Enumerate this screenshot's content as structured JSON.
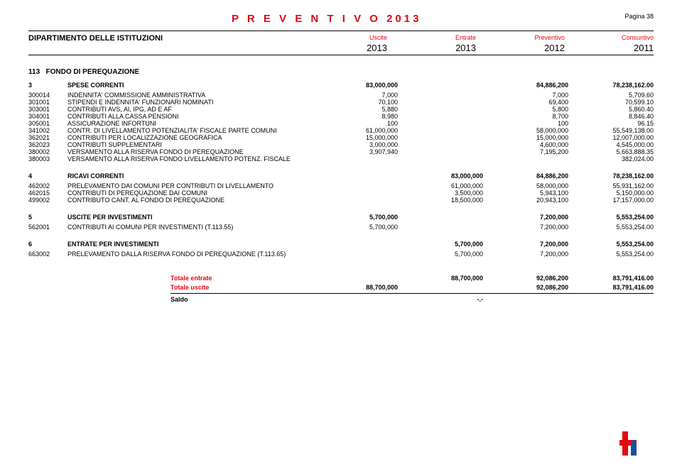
{
  "header": {
    "title": "P R E V E N T I V O  2013",
    "page_label": "Pagina 38"
  },
  "department": {
    "name": "DIPARTIMENTO DELLE ISTITUZIONI",
    "columns": [
      {
        "label": "Uscite",
        "year": "2013"
      },
      {
        "label": "Entrate",
        "year": "2013"
      },
      {
        "label": "Preventivo",
        "year": "2012"
      },
      {
        "label": "Consuntivo",
        "year": "2011"
      }
    ]
  },
  "fondo": {
    "code": "113",
    "title": "FONDO DI PEREQUAZIONE"
  },
  "groups": [
    {
      "code": "3",
      "label": "SPESE CORRENTI",
      "values": [
        "83,000,000",
        "",
        "84,886,200",
        "78,238,162.00"
      ],
      "lines": [
        {
          "code": "300014",
          "label": "INDENNITA' COMMISSIONE AMMINISTRATIVA",
          "values": [
            "7,000",
            "",
            "7,000",
            "5,709.60"
          ]
        },
        {
          "code": "301001",
          "label": "STIPENDI E INDENNITA' FUNZIONARI NOMINATI",
          "values": [
            "70,100",
            "",
            "69,400",
            "70,599.10"
          ]
        },
        {
          "code": "303001",
          "label": "CONTRIBUTI AVS, AI, IPG, AD E AF",
          "values": [
            "5,880",
            "",
            "5,800",
            "5,860.40"
          ]
        },
        {
          "code": "304001",
          "label": "CONTRIBUTI ALLA CASSA PENSIONI",
          "values": [
            "8,980",
            "",
            "8,700",
            "8,846.40"
          ]
        },
        {
          "code": "305001",
          "label": "ASSICURAZIONE INFORTUNI",
          "values": [
            "100",
            "",
            "100",
            "96.15"
          ]
        },
        {
          "code": "341002",
          "label": "CONTR. DI LIVELLAMENTO POTENZIALITA' FISCALE PARTE COMUNI",
          "values": [
            "61,000,000",
            "",
            "58,000,000",
            "55,549,138.00"
          ]
        },
        {
          "code": "362021",
          "label": "CONTRIBUTI PER LOCALIZZAZIONE GEOGRAFICA",
          "values": [
            "15,000,000",
            "",
            "15,000,000",
            "12,007,000.00"
          ]
        },
        {
          "code": "362023",
          "label": "CONTRIBUTI SUPPLEMENTARI",
          "values": [
            "3,000,000",
            "",
            "4,600,000",
            "4,545,000.00"
          ]
        },
        {
          "code": "380002",
          "label": "VERSAMENTO ALLA RISERVA FONDO DI PEREQUAZIONE",
          "values": [
            "3,907,940",
            "",
            "7,195,200",
            "5,663,888.35"
          ]
        },
        {
          "code": "380003",
          "label": "VERSAMENTO ALLA RISERVA FONDO LIVELLAMENTO POTENZ. FISCALE",
          "values": [
            "",
            "",
            "",
            "382,024.00"
          ]
        }
      ]
    },
    {
      "code": "4",
      "label": "RICAVI CORRENTI",
      "values": [
        "",
        "83,000,000",
        "84,886,200",
        "78,238,162.00"
      ],
      "lines": [
        {
          "code": "462002",
          "label": "PRELEVAMENTO DAI COMUNI PER CONTRIBUTI DI LIVELLAMENTO",
          "values": [
            "",
            "61,000,000",
            "58,000,000",
            "55,931,162.00"
          ]
        },
        {
          "code": "462015",
          "label": "CONTRIBUTI DI PEREQUAZIONE DAI COMUNI",
          "values": [
            "",
            "3,500,000",
            "5,943,100",
            "5,150,000.00"
          ]
        },
        {
          "code": "499002",
          "label": "CONTRIBUTO CANT. AL FONDO DI PEREQUAZIONE",
          "values": [
            "",
            "18,500,000",
            "20,943,100",
            "17,157,000.00"
          ]
        }
      ]
    },
    {
      "code": "5",
      "label": "USCITE PER INVESTIMENTI",
      "values": [
        "5,700,000",
        "",
        "7,200,000",
        "5,553,254.00"
      ],
      "lines": [
        {
          "code": "562001",
          "label": "CONTRIBUTI AI COMUNI PER INVESTIMENTI (T.113.55)",
          "values": [
            "5,700,000",
            "",
            "7,200,000",
            "5,553,254.00"
          ]
        }
      ]
    },
    {
      "code": "6",
      "label": "ENTRATE PER INVESTIMENTI",
      "values": [
        "",
        "5,700,000",
        "7,200,000",
        "5,553,254.00"
      ],
      "lines": [
        {
          "code": "663002",
          "label": "PRELEVAMENTO DALLA RISERVA FONDO DI PEREQUAZIONE (T.113.65)",
          "values": [
            "",
            "5,700,000",
            "7,200,000",
            "5,553,254.00"
          ]
        }
      ]
    }
  ],
  "totals": {
    "entrate": {
      "label": "Totale entrate",
      "values": [
        "",
        "88,700,000",
        "92,086,200",
        "83,791,416.00"
      ]
    },
    "uscite": {
      "label": "Totale uscite",
      "values": [
        "88,700,000",
        "",
        "92,086,200",
        "83,791,416.00"
      ]
    },
    "saldo": {
      "label": "Saldo",
      "values": [
        "",
        "-.-",
        "",
        ""
      ]
    }
  },
  "styling": {
    "brand_red": "#e30613",
    "text_color": "#000000",
    "background": "#ffffff",
    "title_fontsize": 15,
    "body_fontsize": 9,
    "dept_fontsize": 11,
    "year_fontsize": 13
  }
}
